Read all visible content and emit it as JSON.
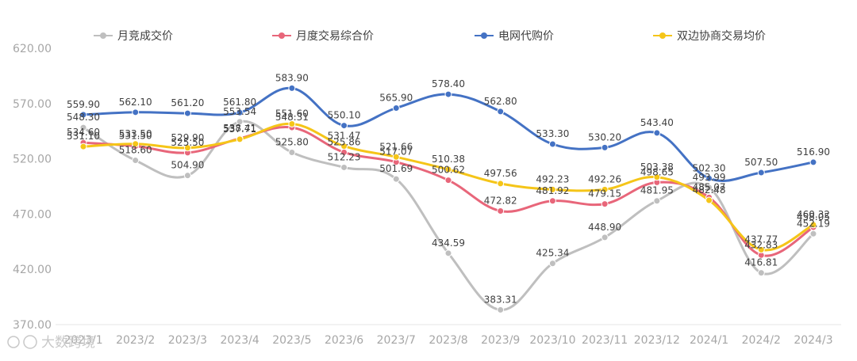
{
  "chart_data": {
    "type": "line",
    "categories": [
      "2023/1",
      "2023/2",
      "2023/3",
      "2023/4",
      "2023/5",
      "2023/6",
      "2023/7",
      "2023/8",
      "2023/9",
      "2023/10",
      "2023/11",
      "2023/12",
      "2024/1",
      "2024/2",
      "2024/3"
    ],
    "ylim": [
      370,
      620
    ],
    "yticks": [
      "620.00",
      "570.00",
      "520.00",
      "470.00",
      "420.00",
      "370.00"
    ],
    "grid": false,
    "legend_position": "top",
    "series": [
      {
        "name": "月竞成交价",
        "color": "#bfbfbf",
        "values": [
          548.3,
          518.6,
          504.9,
          553.54,
          525.8,
          512.23,
          501.69,
          434.59,
          383.31,
          425.34,
          448.9,
          481.95,
          493.99,
          416.81,
          452.19
        ],
        "labels": [
          "548.30",
          "518.60",
          "504.90",
          "553.54",
          "525.80",
          "512.23",
          "501.69",
          "434.59",
          "383.31",
          "425.34",
          "448.90",
          "481.95",
          "493.99",
          "416.81",
          "452.19"
        ]
      },
      {
        "name": "月度交易综合价",
        "color": "#e8667a",
        "values": [
          534.6,
          531.5,
          525.5,
          538.41,
          548.31,
          525.86,
          517.07,
          500.62,
          472.82,
          481.92,
          479.15,
          498.65,
          485.07,
          432.83,
          458.05
        ],
        "labels": [
          "534.60",
          "531.50",
          "525.50",
          "538.41",
          "548.31",
          "525.86",
          "517.07",
          "500.62",
          "472.82",
          "481.92",
          "479.15",
          "498.65",
          "485.07",
          "432.83",
          "458.05"
        ]
      },
      {
        "name": "电网代购价",
        "color": "#4472c4",
        "values": [
          559.9,
          562.1,
          561.2,
          561.8,
          583.9,
          550.1,
          565.9,
          578.4,
          562.8,
          533.3,
          530.2,
          543.4,
          502.3,
          507.5,
          516.9
        ],
        "labels": [
          "559.90",
          "562.10",
          "561.20",
          "561.80",
          "583.90",
          "550.10",
          "565.90",
          "578.40",
          "562.80",
          "533.30",
          "530.20",
          "543.40",
          "502.30",
          "507.50",
          "516.90"
        ]
      },
      {
        "name": "双边协商交易均价",
        "color": "#f5c518",
        "values": [
          531.1,
          533.5,
          529.9,
          537.71,
          551.6,
          531.47,
          521.66,
          510.38,
          497.56,
          492.23,
          492.26,
          503.38,
          482.48,
          437.77,
          460.32
        ],
        "labels": [
          "531.10",
          "533.50",
          "529.90",
          "537.71",
          "551.60",
          "531.47",
          "521.66",
          "510.38",
          "497.56",
          "492.23",
          "492.26",
          "503.38",
          "482.48",
          "437.77",
          "460.32"
        ]
      }
    ]
  },
  "watermark": "大数跨境"
}
